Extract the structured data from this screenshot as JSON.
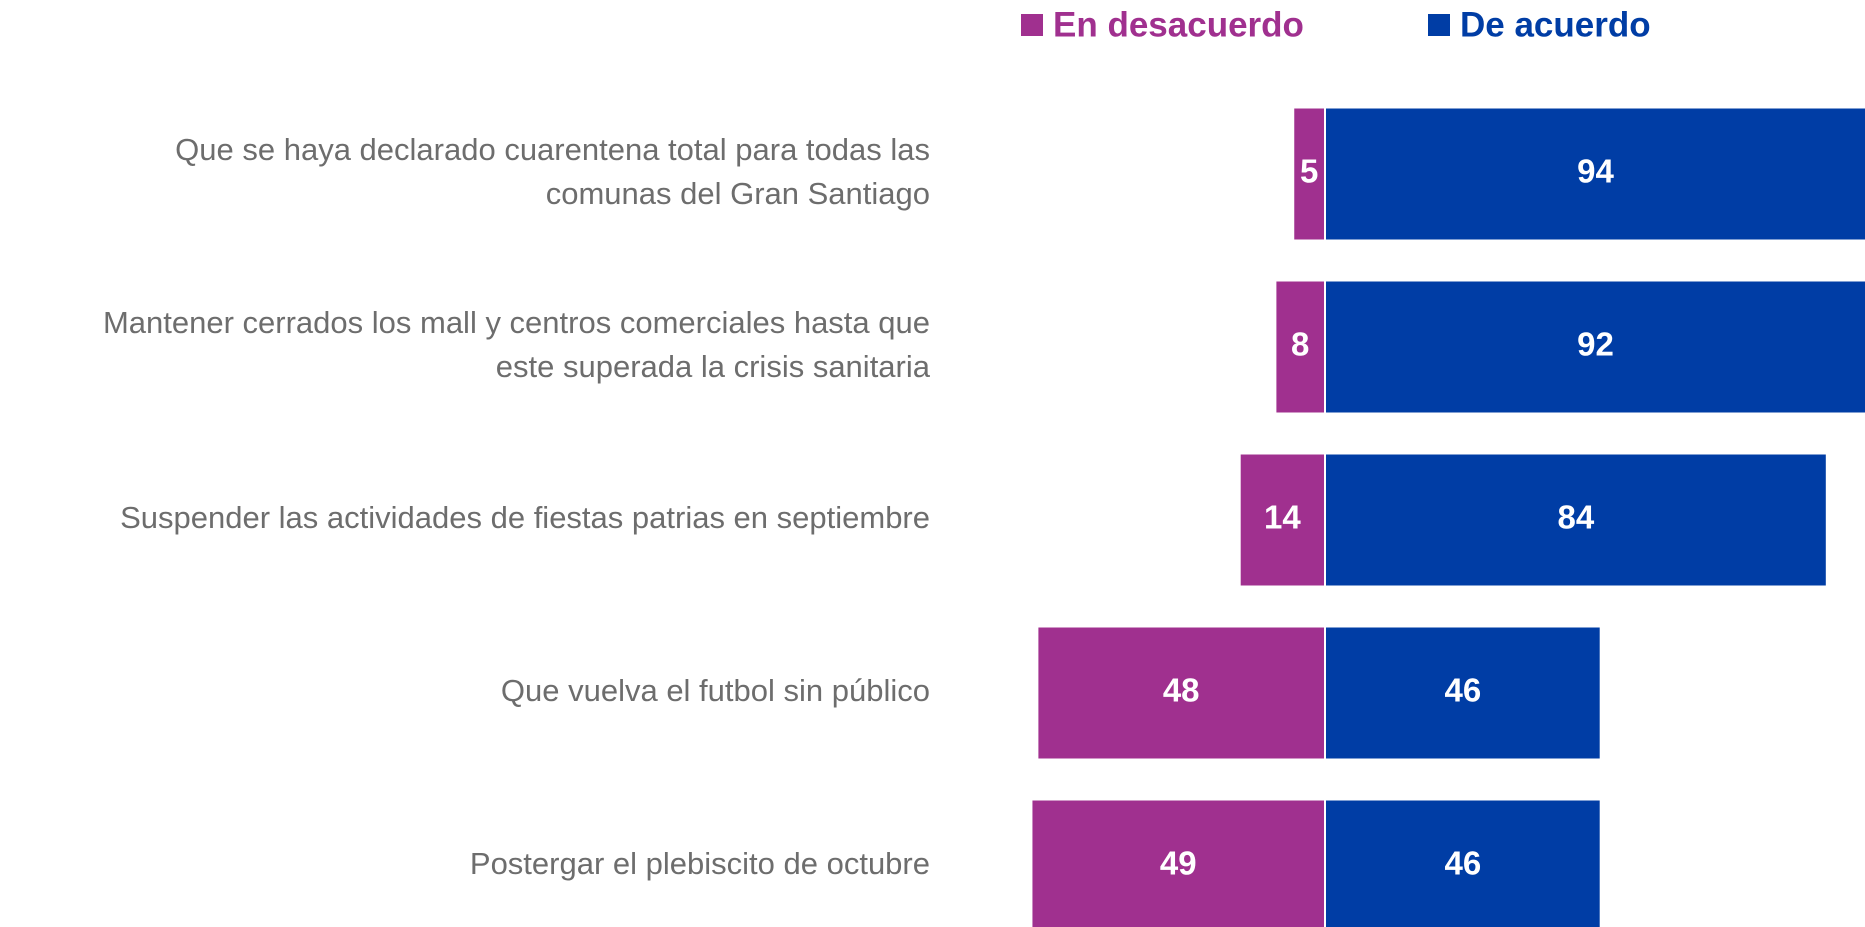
{
  "chart_data": {
    "type": "diverging_bar",
    "categories": [
      [
        "Que se haya declarado cuarentena total para todas las",
        "comunas del Gran Santiago"
      ],
      [
        "Mantener cerrados los mall y centros comerciales hasta que",
        "este superada la crisis sanitaria"
      ],
      [
        "Suspender las actividades de fiestas patrias en septiembre"
      ],
      [
        "Que vuelva el futbol sin público"
      ],
      [
        "Postergar el plebiscito de octubre"
      ]
    ],
    "series": [
      {
        "name": "En desacuerdo",
        "color": "#a0308f",
        "values": [
          5,
          8,
          14,
          48,
          49
        ]
      },
      {
        "name": "De acuerdo",
        "color": "#003da5",
        "values": [
          94,
          92,
          84,
          46,
          46
        ]
      }
    ]
  }
}
